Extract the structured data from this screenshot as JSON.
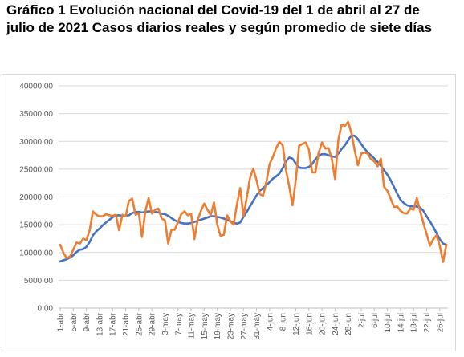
{
  "title_lines": [
    "Gráfico 1 Evolución nacional del Covid-19 del 1 de abril al 27 de",
    "julio de 2021 Casos diarios reales y según promedio de siete días"
  ],
  "chart_data": {
    "type": "line",
    "title": "Gráfico 1 Evolución nacional del Covid-19 del 1 de abril al 27 de julio de 2021 Casos diarios reales y según promedio de siete días",
    "xlabel": "",
    "ylabel": "",
    "ylim": [
      0,
      40000
    ],
    "yticks": [
      "0,00",
      "5000,00",
      "10000,00",
      "15000,00",
      "20000,00",
      "25000,00",
      "30000,00",
      "35000,00",
      "40000,00"
    ],
    "grid": true,
    "legend": "none",
    "xtick_labels": [
      "1-abr",
      "5-abr",
      "9-abr",
      "13-abr",
      "17-abr",
      "21-abr",
      "25-abr",
      "29-abr",
      "3-may",
      "7-may",
      "11-may",
      "15-may",
      "19-may",
      "23-may",
      "27-may",
      "31-may",
      "4-jun",
      "8-jun",
      "12-jun",
      "16-jun",
      "20-jun",
      "24-jun",
      "28-jun",
      "2-jul",
      "6-jul",
      "10-jul",
      "14-jul",
      "18-jul",
      "22-jul",
      "26-jul"
    ],
    "colors": {
      "daily": "#ed7d31",
      "average": "#4472c4"
    },
    "series": [
      {
        "key": "daily",
        "values": [
          11400,
          9900,
          9000,
          9300,
          10500,
          11800,
          11600,
          12500,
          12200,
          14000,
          17400,
          16800,
          16500,
          16500,
          16900,
          16700,
          16600,
          16800,
          14000,
          16800,
          16500,
          19300,
          19700,
          16800,
          17100,
          12800,
          17400,
          19800,
          17000,
          17700,
          17900,
          16100,
          15800,
          11600,
          14100,
          14100,
          15500,
          16900,
          17400,
          16700,
          17000,
          12400,
          15800,
          17500,
          18800,
          17700,
          16700,
          19000,
          15000,
          13000,
          13200,
          16700,
          15600,
          15000,
          18600,
          21600,
          16500,
          19800,
          23400,
          25100,
          23000,
          20500,
          20200,
          22700,
          25900,
          27200,
          28800,
          29900,
          29300,
          24800,
          21900,
          18500,
          23100,
          29200,
          29500,
          29800,
          28500,
          24400,
          24400,
          28000,
          29800,
          28700,
          28800,
          26900,
          23200,
          30300,
          33000,
          32800,
          33500,
          31500,
          28400,
          25700,
          27800,
          28000,
          27800,
          26800,
          26400,
          25500,
          26900,
          21800,
          21100,
          19700,
          18200,
          18300,
          17500,
          17100,
          17000,
          17900,
          17700,
          19800,
          17400,
          15300,
          13300,
          11200,
          12400,
          13100,
          11200,
          8300,
          11400
        ]
      },
      {
        "key": "average",
        "values": [
          8400,
          8600,
          8800,
          9100,
          9500,
          10100,
          10500,
          10600,
          11000,
          11900,
          13100,
          13800,
          14300,
          14900,
          15400,
          15900,
          16300,
          16700,
          16700,
          16600,
          16600,
          16700,
          17100,
          17300,
          17300,
          17200,
          17300,
          17400,
          17400,
          17300,
          17200,
          17000,
          16900,
          16600,
          16200,
          15800,
          15500,
          15300,
          15200,
          15200,
          15300,
          15500,
          15700,
          15900,
          16100,
          16300,
          16500,
          16500,
          16400,
          16300,
          16100,
          15900,
          15600,
          15300,
          15200,
          15400,
          16400,
          17300,
          18300,
          19300,
          20300,
          21100,
          21600,
          22100,
          22700,
          23300,
          23700,
          24200,
          25200,
          26400,
          27100,
          26900,
          26000,
          25300,
          25200,
          25200,
          25400,
          25900,
          26800,
          27400,
          27700,
          27700,
          27500,
          27300,
          27200,
          27800,
          28600,
          29300,
          30200,
          31100,
          31000,
          30400,
          29500,
          28700,
          28000,
          27500,
          26900,
          26300,
          25600,
          24800,
          24000,
          23000,
          21800,
          20600,
          19500,
          18900,
          18500,
          18300,
          18300,
          18300,
          18100,
          17500,
          16500,
          15600,
          14600,
          13500,
          12400,
          11600,
          11400
        ]
      }
    ]
  }
}
